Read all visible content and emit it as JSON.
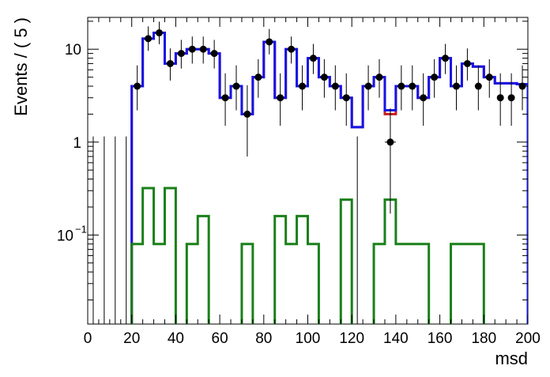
{
  "chart_data": {
    "type": "line",
    "title": "",
    "xlabel": "msd",
    "ylabel": "Events / ( 5 )",
    "xlim": [
      0,
      200
    ],
    "ylim": [
      0.011,
      22
    ],
    "y_log_scale": true,
    "grid": false,
    "x_ticks": [
      {
        "value": 0,
        "label": "0"
      },
      {
        "value": 20,
        "label": "20"
      },
      {
        "value": 40,
        "label": "40"
      },
      {
        "value": 60,
        "label": "60"
      },
      {
        "value": 80,
        "label": "80"
      },
      {
        "value": 100,
        "label": "100"
      },
      {
        "value": 120,
        "label": "120"
      },
      {
        "value": 140,
        "label": "140"
      },
      {
        "value": 160,
        "label": "160"
      },
      {
        "value": 180,
        "label": "180"
      },
      {
        "value": 200,
        "label": "200"
      }
    ],
    "y_ticks": [
      {
        "value": 0.1,
        "label_base": "10",
        "label_exp": "−1"
      },
      {
        "value": 1,
        "label_base": "1",
        "label_exp": ""
      },
      {
        "value": 10,
        "label_base": "10",
        "label_exp": ""
      }
    ],
    "bin_edges": [
      20,
      25,
      30,
      35,
      40,
      45,
      50,
      55,
      60,
      65,
      70,
      75,
      80,
      85,
      90,
      95,
      100,
      105,
      110,
      115,
      120,
      125,
      130,
      135,
      140,
      145,
      150,
      155,
      160,
      165,
      170,
      175,
      180,
      185,
      190,
      195,
      200
    ],
    "series": [
      {
        "type": "step",
        "color": "#c81e1e",
        "values": [
          4,
          13,
          15,
          7,
          9,
          10,
          10,
          9,
          3,
          4,
          2,
          5,
          12,
          3,
          10,
          4,
          8,
          5,
          4,
          3,
          1.45,
          4,
          5,
          2,
          4,
          4,
          3,
          5,
          8,
          4,
          7,
          6.5,
          5,
          4.3,
          4.3,
          4.2
        ]
      },
      {
        "type": "step",
        "color": "#1414e6",
        "values": [
          4,
          13,
          15,
          7,
          9,
          10,
          10,
          9,
          3,
          4,
          2,
          5,
          12,
          3,
          10,
          4,
          8,
          5,
          4,
          3,
          1.45,
          4,
          5,
          2.2,
          4,
          4,
          3,
          5,
          8,
          4,
          7,
          6.5,
          5,
          4.3,
          4.3,
          4.2
        ]
      },
      {
        "type": "step",
        "color": "#1a801a",
        "values": [
          0.08,
          0.32,
          0.08,
          0.32,
          0.001,
          0.08,
          0.16,
          0.001,
          0.001,
          0.001,
          0.08,
          0.001,
          0.001,
          0.16,
          0.08,
          0.16,
          0.08,
          0.001,
          0.001,
          0.24,
          0.001,
          0.001,
          0.08,
          0.24,
          0.08,
          0.08,
          0.08,
          0.001,
          0.001,
          0.08,
          0.08,
          0.08,
          0.001,
          0.001,
          0.001,
          0.001
        ]
      },
      {
        "type": "points",
        "color": "#000000",
        "points": [
          {
            "x": 2.5,
            "y": 0,
            "lo": 0,
            "hi": 1.15
          },
          {
            "x": 7.5,
            "y": 0,
            "lo": 0,
            "hi": 1.15
          },
          {
            "x": 12.5,
            "y": 0,
            "lo": 0,
            "hi": 1.15
          },
          {
            "x": 17.5,
            "y": 0,
            "lo": 0,
            "hi": 1.15
          },
          {
            "x": 22.5,
            "y": 4,
            "lo": 2.2,
            "hi": 6.7
          },
          {
            "x": 27.5,
            "y": 13,
            "lo": 9.6,
            "hi": 17.6
          },
          {
            "x": 32.5,
            "y": 15,
            "lo": 11.3,
            "hi": 19.8
          },
          {
            "x": 37.5,
            "y": 7,
            "lo": 4.6,
            "hi": 10.2
          },
          {
            "x": 42.5,
            "y": 9,
            "lo": 6.2,
            "hi": 12.6
          },
          {
            "x": 47.5,
            "y": 10,
            "lo": 7.0,
            "hi": 13.7
          },
          {
            "x": 52.5,
            "y": 10,
            "lo": 7.0,
            "hi": 13.7
          },
          {
            "x": 57.5,
            "y": 9,
            "lo": 6.2,
            "hi": 12.6
          },
          {
            "x": 62.5,
            "y": 3,
            "lo": 1.5,
            "hi": 5.5
          },
          {
            "x": 67.5,
            "y": 4,
            "lo": 2.2,
            "hi": 6.7
          },
          {
            "x": 72.5,
            "y": 2,
            "lo": 0.7,
            "hi": 4.1
          },
          {
            "x": 77.5,
            "y": 5,
            "lo": 3.0,
            "hi": 7.8
          },
          {
            "x": 82.5,
            "y": 12,
            "lo": 8.8,
            "hi": 16.5
          },
          {
            "x": 87.5,
            "y": 3,
            "lo": 1.5,
            "hi": 5.5
          },
          {
            "x": 92.5,
            "y": 10,
            "lo": 7.0,
            "hi": 13.7
          },
          {
            "x": 97.5,
            "y": 4,
            "lo": 2.2,
            "hi": 6.7
          },
          {
            "x": 102.5,
            "y": 8,
            "lo": 5.4,
            "hi": 11.4
          },
          {
            "x": 107.5,
            "y": 5,
            "lo": 3.0,
            "hi": 7.8
          },
          {
            "x": 112.5,
            "y": 4,
            "lo": 2.2,
            "hi": 6.7
          },
          {
            "x": 117.5,
            "y": 3,
            "lo": 1.5,
            "hi": 5.5
          },
          {
            "x": 122.5,
            "y": 0,
            "lo": 0,
            "hi": 1.15
          },
          {
            "x": 127.5,
            "y": 4,
            "lo": 2.2,
            "hi": 6.7
          },
          {
            "x": 132.5,
            "y": 5,
            "lo": 3.0,
            "hi": 7.8
          },
          {
            "x": 137.5,
            "y": 1,
            "lo": 0.17,
            "hi": 2.3,
            "xerr": 2.5
          },
          {
            "x": 142.5,
            "y": 4,
            "lo": 2.2,
            "hi": 6.7
          },
          {
            "x": 147.5,
            "y": 4,
            "lo": 2.2,
            "hi": 6.7
          },
          {
            "x": 152.5,
            "y": 3,
            "lo": 1.5,
            "hi": 5.5
          },
          {
            "x": 157.5,
            "y": 5,
            "lo": 3.0,
            "hi": 7.8
          },
          {
            "x": 162.5,
            "y": 8,
            "lo": 5.4,
            "hi": 11.4
          },
          {
            "x": 167.5,
            "y": 4,
            "lo": 2.2,
            "hi": 6.7
          },
          {
            "x": 172.5,
            "y": 7,
            "lo": 4.6,
            "hi": 10.2
          },
          {
            "x": 177.5,
            "y": 4,
            "lo": 2.2,
            "hi": 6.7
          },
          {
            "x": 182.5,
            "y": 5,
            "lo": 3.0,
            "hi": 7.8
          },
          {
            "x": 187.5,
            "y": 3,
            "lo": 1.5,
            "hi": 5.5
          },
          {
            "x": 192.5,
            "y": 3,
            "lo": 1.5,
            "hi": 5.5
          },
          {
            "x": 197.5,
            "y": 4,
            "lo": 2.2,
            "hi": 6.7
          }
        ]
      }
    ]
  }
}
